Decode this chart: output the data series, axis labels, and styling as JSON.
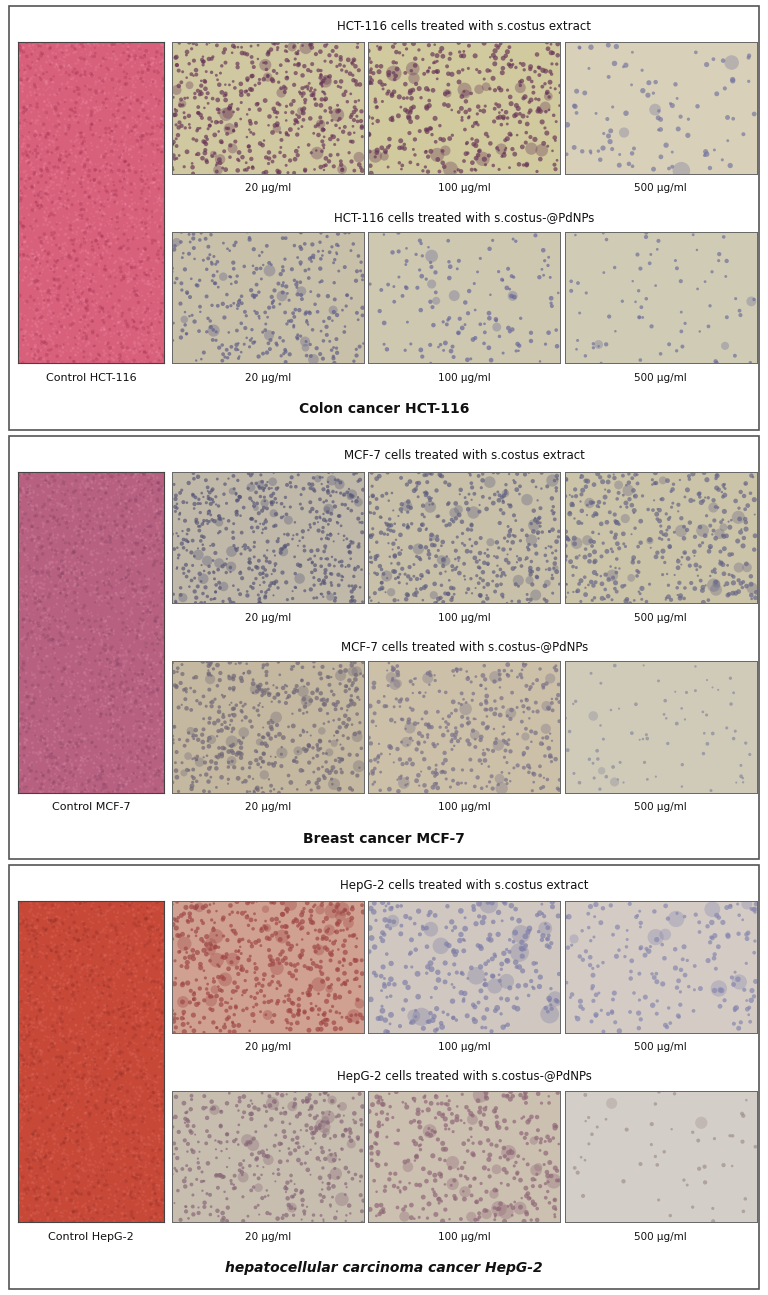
{
  "panels": [
    {
      "title_extract": "HCT-116 cells treated with s.costus extract",
      "title_pdnps": "HCT-116 cells treated with s.costus-@PdNPs",
      "footer": "Colon cancer HCT-116",
      "footer_bold": true,
      "footer_italic": false,
      "control_label": "Control HCT-116",
      "control_color": "#d8607a"
    },
    {
      "title_extract": "MCF-7 cells treated with s.costus extract",
      "title_pdnps": "MCF-7 cells treated with s.costus-@PdNPs",
      "footer": "Breast cancer MCF-7",
      "footer_bold": true,
      "footer_italic": false,
      "control_label": "Control MCF-7",
      "control_color": "#b86080"
    },
    {
      "title_extract": "HepG-2 cells treated with s.costus extract",
      "title_pdnps": "HepG-2 cells treated with s.costus-@PdNPs",
      "footer": "hepatocellular carcinoma cancer HepG-2",
      "footer_bold": true,
      "footer_italic": false,
      "control_label": "Control HepG-2",
      "control_color": "#cc5038"
    }
  ],
  "concentrations": [
    "20 μg/ml",
    "100 μg/ml",
    "500 μg/ml"
  ],
  "bg_color": "#ffffff",
  "border_color": "#555555"
}
